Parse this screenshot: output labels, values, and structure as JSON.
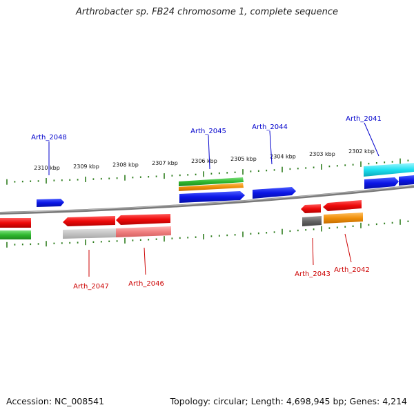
{
  "title": "Arthrobacter sp. FB24 chromosome 1, complete sequence",
  "footer": {
    "accession": "Accession: NC_008541",
    "info": "Topology: circular; Length: 4,698,945 bp; Genes: 4,214"
  },
  "colors": {
    "forward_label": "#0000cc",
    "reverse_label": "#cc0000",
    "tick": "#2e7d1e",
    "backbone": "#7a7a7a"
  },
  "scale_labels": [
    "2310 kbp",
    "2309 kbp",
    "2308 kbp",
    "2307 kbp",
    "2306 kbp",
    "2305 kbp",
    "2304 kbp",
    "2303 kbp",
    "2302 kbp"
  ],
  "gene_labels": {
    "forward": [
      "Arth_2048",
      "Arth_2045",
      "Arth_2044",
      "Arth_2041"
    ],
    "reverse": [
      "Arth_2047",
      "Arth_2046",
      "Arth_2043",
      "Arth_2042"
    ]
  }
}
